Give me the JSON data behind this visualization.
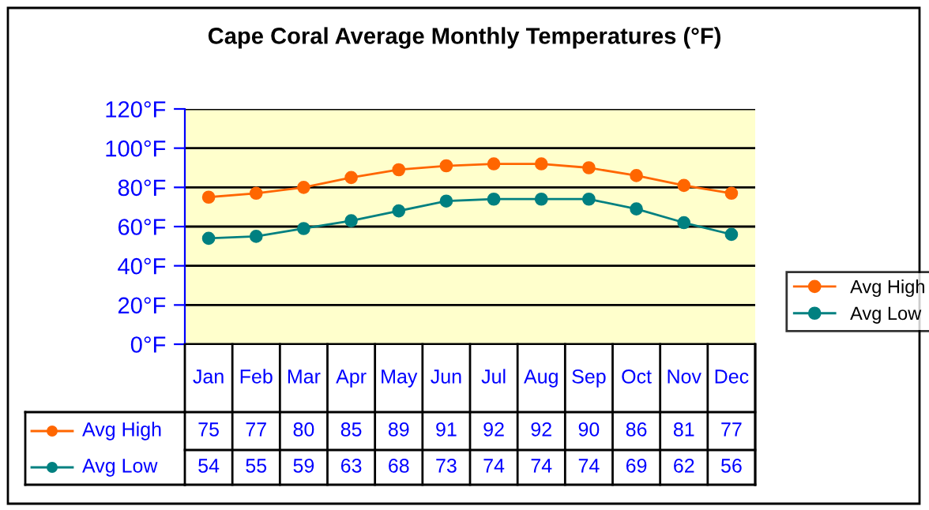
{
  "chart_data": {
    "type": "line",
    "title": "Cape Coral Average Monthly Temperatures (°F)",
    "categories": [
      "Jan",
      "Feb",
      "Mar",
      "Apr",
      "May",
      "Jun",
      "Jul",
      "Aug",
      "Sep",
      "Oct",
      "Nov",
      "Dec"
    ],
    "series": [
      {
        "name": "Avg High",
        "color": "#ff6600",
        "values": [
          75,
          77,
          80,
          85,
          89,
          91,
          92,
          92,
          90,
          86,
          81,
          77
        ]
      },
      {
        "name": "Avg Low",
        "color": "#008080",
        "values": [
          54,
          55,
          59,
          63,
          68,
          73,
          74,
          74,
          74,
          69,
          62,
          56
        ]
      }
    ],
    "ylim": [
      0,
      120
    ],
    "yticks": [
      {
        "value": 0,
        "label": "0°F"
      },
      {
        "value": 20,
        "label": "20°F"
      },
      {
        "value": 40,
        "label": "40°F"
      },
      {
        "value": 60,
        "label": "60°F"
      },
      {
        "value": 80,
        "label": "80°F"
      },
      {
        "value": 100,
        "label": "100°F"
      },
      {
        "value": 120,
        "label": "120°F"
      }
    ],
    "grid": "y",
    "legend": "right",
    "marker": "circle",
    "line_style": "solid",
    "data_labels": true
  }
}
